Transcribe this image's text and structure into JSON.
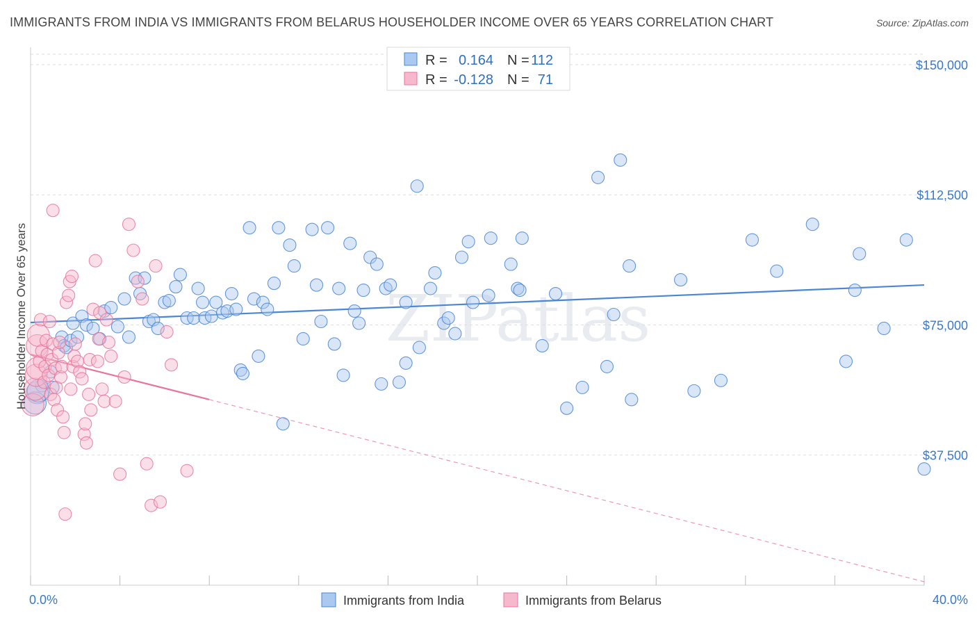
{
  "title": "IMMIGRANTS FROM INDIA VS IMMIGRANTS FROM BELARUS HOUSEHOLDER INCOME OVER 65 YEARS CORRELATION CHART",
  "source": "Source: ZipAtlas.com",
  "watermark": "ZIPatlas",
  "colors": {
    "india": "#4a86d4",
    "belarus": "#e8759b",
    "india_fill": "#aac8f0",
    "belarus_fill": "#f6b8cc",
    "tick": "#3a78c9"
  },
  "legend": {
    "rows": [
      {
        "series": "india",
        "r_label": "R =",
        "r_value": "0.164",
        "n_label": "N =",
        "n_value": "112"
      },
      {
        "series": "belarus",
        "r_label": "R =",
        "r_value": "-0.128",
        "n_label": "N =",
        "n_value": "71"
      }
    ]
  },
  "chart_data": {
    "type": "scatter",
    "title": "IMMIGRANTS FROM INDIA VS IMMIGRANTS FROM BELARUS HOUSEHOLDER INCOME OVER 65 YEARS CORRELATION CHART",
    "xlabel": "",
    "ylabel": "Householder Income Over 65 years",
    "xlim": [
      0,
      40
    ],
    "ylim": [
      0,
      153000
    ],
    "x_tick_labels": [
      "0.0%",
      "40.0%"
    ],
    "y_ticks": [
      37500,
      75000,
      112500,
      150000
    ],
    "y_tick_labels": [
      "$37,500",
      "$75,000",
      "$112,500",
      "$150,000"
    ],
    "grid": true,
    "legend_position": "bottom-center",
    "series": [
      {
        "name": "Immigrants from India",
        "color": "#4a86d4",
        "trend": {
          "x": [
            0,
            40
          ],
          "y": [
            75700,
            86500
          ]
        },
        "points": [
          [
            0.3,
            55500
          ],
          [
            0.5,
            57500
          ],
          [
            0.9,
            61500
          ],
          [
            1.0,
            57000
          ],
          [
            1.4,
            71500
          ],
          [
            1.5,
            69000
          ],
          [
            1.6,
            68500
          ],
          [
            1.8,
            70500
          ],
          [
            1.9,
            75500
          ],
          [
            2.1,
            71500
          ],
          [
            2.3,
            77500
          ],
          [
            2.5,
            75000
          ],
          [
            2.8,
            74000
          ],
          [
            3.1,
            71000
          ],
          [
            3.3,
            79000
          ],
          [
            3.6,
            80000
          ],
          [
            3.9,
            74500
          ],
          [
            4.2,
            82500
          ],
          [
            4.4,
            71500
          ],
          [
            4.7,
            88500
          ],
          [
            4.9,
            84000
          ],
          [
            5.1,
            88500
          ],
          [
            5.3,
            76000
          ],
          [
            5.5,
            76500
          ],
          [
            5.7,
            74000
          ],
          [
            6.0,
            81500
          ],
          [
            6.2,
            82000
          ],
          [
            6.5,
            86000
          ],
          [
            6.7,
            89500
          ],
          [
            7.0,
            77000
          ],
          [
            7.3,
            77000
          ],
          [
            7.5,
            85500
          ],
          [
            7.7,
            81500
          ],
          [
            7.8,
            77000
          ],
          [
            8.1,
            77500
          ],
          [
            8.3,
            81500
          ],
          [
            8.6,
            78500
          ],
          [
            8.8,
            79000
          ],
          [
            9.0,
            84000
          ],
          [
            9.2,
            79500
          ],
          [
            9.4,
            62000
          ],
          [
            9.5,
            61000
          ],
          [
            9.8,
            103000
          ],
          [
            10.0,
            82500
          ],
          [
            10.2,
            66000
          ],
          [
            10.4,
            81500
          ],
          [
            10.6,
            79500
          ],
          [
            10.9,
            87000
          ],
          [
            11.1,
            103000
          ],
          [
            11.3,
            46500
          ],
          [
            11.6,
            98000
          ],
          [
            11.8,
            92000
          ],
          [
            12.2,
            71000
          ],
          [
            12.6,
            102500
          ],
          [
            12.8,
            86500
          ],
          [
            13.0,
            76000
          ],
          [
            13.3,
            103000
          ],
          [
            13.6,
            69500
          ],
          [
            13.8,
            85500
          ],
          [
            14.0,
            60500
          ],
          [
            14.3,
            98500
          ],
          [
            14.5,
            79000
          ],
          [
            14.7,
            75500
          ],
          [
            14.9,
            85000
          ],
          [
            15.2,
            94500
          ],
          [
            15.5,
            92500
          ],
          [
            15.7,
            58000
          ],
          [
            15.9,
            85500
          ],
          [
            16.1,
            86500
          ],
          [
            16.5,
            58500
          ],
          [
            16.8,
            64000
          ],
          [
            16.8,
            81500
          ],
          [
            17.3,
            115000
          ],
          [
            17.4,
            68500
          ],
          [
            17.9,
            85500
          ],
          [
            18.1,
            90000
          ],
          [
            18.5,
            75500
          ],
          [
            18.7,
            77000
          ],
          [
            19.0,
            72500
          ],
          [
            19.3,
            94500
          ],
          [
            19.6,
            99000
          ],
          [
            19.8,
            81500
          ],
          [
            20.5,
            83500
          ],
          [
            20.6,
            100000
          ],
          [
            21.5,
            92500
          ],
          [
            21.8,
            85500
          ],
          [
            21.9,
            85000
          ],
          [
            22.0,
            100000
          ],
          [
            22.9,
            69000
          ],
          [
            23.5,
            84000
          ],
          [
            24.0,
            51000
          ],
          [
            24.7,
            57000
          ],
          [
            25.4,
            117500
          ],
          [
            25.8,
            63000
          ],
          [
            26.1,
            78000
          ],
          [
            26.4,
            122500
          ],
          [
            26.8,
            92000
          ],
          [
            26.9,
            53500
          ],
          [
            29.1,
            88000
          ],
          [
            29.7,
            56000
          ],
          [
            30.9,
            59000
          ],
          [
            32.3,
            99500
          ],
          [
            33.4,
            90500
          ],
          [
            35.0,
            104000
          ],
          [
            36.5,
            64500
          ],
          [
            36.9,
            85000
          ],
          [
            37.1,
            95500
          ],
          [
            38.2,
            74000
          ],
          [
            39.2,
            99500
          ],
          [
            40.0,
            33500
          ],
          [
            0.2,
            52500
          ],
          [
            0.35,
            56000
          ]
        ]
      },
      {
        "name": "Immigrants from Belarus",
        "color": "#e8759b",
        "trend": {
          "x": [
            0,
            8
          ],
          "y": [
            66500,
            53500
          ],
          "dashed_to": [
            40,
            1000
          ]
        },
        "points": [
          [
            0.1,
            52000
          ],
          [
            0.2,
            56500
          ],
          [
            0.25,
            60500
          ],
          [
            0.3,
            62500
          ],
          [
            0.3,
            69000
          ],
          [
            0.35,
            72000
          ],
          [
            0.4,
            64500
          ],
          [
            0.45,
            76500
          ],
          [
            0.5,
            67500
          ],
          [
            0.6,
            58500
          ],
          [
            0.65,
            63000
          ],
          [
            0.7,
            70500
          ],
          [
            0.75,
            66500
          ],
          [
            0.8,
            60500
          ],
          [
            0.85,
            76000
          ],
          [
            0.9,
            55000
          ],
          [
            0.95,
            65000
          ],
          [
            1.0,
            69500
          ],
          [
            1.05,
            53500
          ],
          [
            1.1,
            62500
          ],
          [
            1.15,
            57000
          ],
          [
            1.2,
            50500
          ],
          [
            1.25,
            67000
          ],
          [
            1.3,
            70000
          ],
          [
            1.35,
            60000
          ],
          [
            1.4,
            63000
          ],
          [
            1.45,
            48500
          ],
          [
            1.5,
            44000
          ],
          [
            1.55,
            20500
          ],
          [
            1.6,
            81500
          ],
          [
            1.7,
            83500
          ],
          [
            1.75,
            87500
          ],
          [
            1.8,
            56500
          ],
          [
            1.85,
            89000
          ],
          [
            1.9,
            63000
          ],
          [
            1.95,
            66000
          ],
          [
            2.0,
            69500
          ],
          [
            2.1,
            64500
          ],
          [
            2.2,
            61500
          ],
          [
            2.3,
            59500
          ],
          [
            2.4,
            43500
          ],
          [
            2.45,
            46500
          ],
          [
            2.5,
            41000
          ],
          [
            2.6,
            55000
          ],
          [
            2.65,
            65000
          ],
          [
            2.7,
            50500
          ],
          [
            2.8,
            79500
          ],
          [
            2.9,
            93500
          ],
          [
            3.0,
            64500
          ],
          [
            3.05,
            71000
          ],
          [
            3.1,
            78500
          ],
          [
            3.2,
            56500
          ],
          [
            3.3,
            53000
          ],
          [
            3.4,
            76500
          ],
          [
            3.5,
            70000
          ],
          [
            3.6,
            66000
          ],
          [
            3.8,
            53000
          ],
          [
            4.0,
            32000
          ],
          [
            4.2,
            60000
          ],
          [
            4.4,
            104000
          ],
          [
            4.6,
            96500
          ],
          [
            4.8,
            87500
          ],
          [
            5.0,
            82500
          ],
          [
            5.2,
            35000
          ],
          [
            5.4,
            23000
          ],
          [
            5.6,
            92000
          ],
          [
            5.8,
            24000
          ],
          [
            6.1,
            73000
          ],
          [
            6.3,
            63500
          ],
          [
            7.0,
            33000
          ],
          [
            1.0,
            108000
          ]
        ]
      }
    ]
  },
  "axes": {
    "ylabel": "Householder Income Over 65 years",
    "x_left": "0.0%",
    "x_right": "40.0%"
  },
  "bottom_legend": {
    "india": "Immigrants from India",
    "belarus": "Immigrants from Belarus"
  }
}
